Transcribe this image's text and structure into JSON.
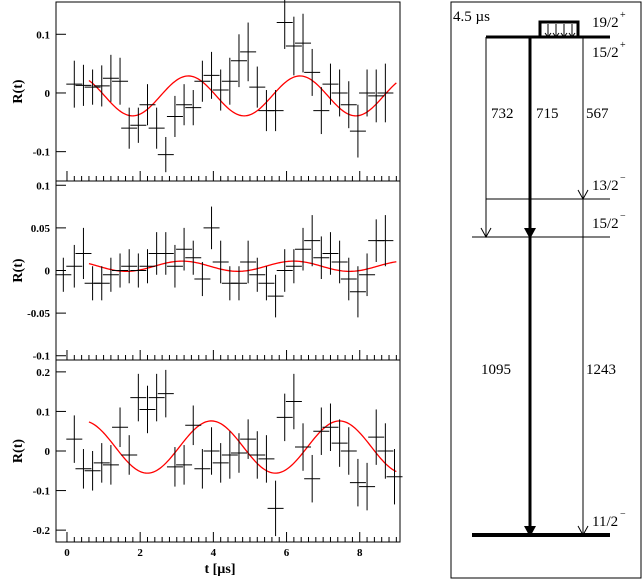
{
  "chart_data": [
    {
      "type": "scatter",
      "panel": "top",
      "ylabel": "R(t)",
      "xlim": [
        -0.3,
        9.1
      ],
      "ylim": [
        -0.15,
        0.155
      ],
      "yticks": [
        -0.1,
        0,
        0.1
      ],
      "ytick_labels": [
        "-0.1",
        "0",
        "0.1"
      ],
      "fit": {
        "offset": -0.005,
        "amplitude": 0.034,
        "period": 3.05,
        "phase": -0.55,
        "x_range": [
          0.6,
          9.0
        ],
        "color": "#ff0000"
      },
      "points": [
        {
          "x": 0.2,
          "y": 0.015,
          "err": 0.04
        },
        {
          "x": 0.45,
          "y": 0.013,
          "err": 0.035
        },
        {
          "x": 0.7,
          "y": 0.01,
          "err": 0.03
        },
        {
          "x": 0.95,
          "y": 0.012,
          "err": 0.035
        },
        {
          "x": 1.2,
          "y": 0.025,
          "err": 0.04
        },
        {
          "x": 1.45,
          "y": 0.02,
          "err": 0.04
        },
        {
          "x": 1.7,
          "y": -0.06,
          "err": 0.035
        },
        {
          "x": 1.95,
          "y": -0.055,
          "err": 0.03
        },
        {
          "x": 2.2,
          "y": -0.02,
          "err": 0.035
        },
        {
          "x": 2.45,
          "y": -0.06,
          "err": 0.035
        },
        {
          "x": 2.7,
          "y": -0.105,
          "err": 0.03
        },
        {
          "x": 2.95,
          "y": -0.04,
          "err": 0.035
        },
        {
          "x": 3.2,
          "y": -0.02,
          "err": 0.035
        },
        {
          "x": 3.45,
          "y": -0.025,
          "err": 0.03
        },
        {
          "x": 3.7,
          "y": 0.02,
          "err": 0.035
        },
        {
          "x": 3.95,
          "y": 0.03,
          "err": 0.04
        },
        {
          "x": 4.2,
          "y": 0.005,
          "err": 0.035
        },
        {
          "x": 4.45,
          "y": 0.02,
          "err": 0.04
        },
        {
          "x": 4.7,
          "y": 0.055,
          "err": 0.045
        },
        {
          "x": 4.95,
          "y": 0.07,
          "err": 0.05
        },
        {
          "x": 5.2,
          "y": 0.01,
          "err": 0.035
        },
        {
          "x": 5.45,
          "y": -0.03,
          "err": 0.035
        },
        {
          "x": 5.7,
          "y": -0.03,
          "err": 0.035
        },
        {
          "x": 5.95,
          "y": 0.12,
          "err": 0.045
        },
        {
          "x": 6.2,
          "y": 0.08,
          "err": 0.05
        },
        {
          "x": 6.45,
          "y": 0.085,
          "err": 0.05
        },
        {
          "x": 6.7,
          "y": 0.035,
          "err": 0.04
        },
        {
          "x": 6.95,
          "y": -0.03,
          "err": 0.04
        },
        {
          "x": 7.2,
          "y": 0.015,
          "err": 0.035
        },
        {
          "x": 7.45,
          "y": 0.0,
          "err": 0.04
        },
        {
          "x": 7.7,
          "y": -0.02,
          "err": 0.04
        },
        {
          "x": 7.95,
          "y": -0.065,
          "err": 0.045
        },
        {
          "x": 8.2,
          "y": 0.0,
          "err": 0.04
        },
        {
          "x": 8.45,
          "y": -0.005,
          "err": 0.045
        },
        {
          "x": 8.7,
          "y": 0.0,
          "err": 0.05
        }
      ]
    },
    {
      "type": "scatter",
      "panel": "middle",
      "ylabel": "R(t)",
      "xlim": [
        -0.3,
        9.1
      ],
      "ylim": [
        -0.105,
        0.105
      ],
      "yticks": [
        -0.1,
        -0.05,
        0,
        0.05,
        0.1
      ],
      "ytick_labels": [
        "-0.1",
        "-0.05",
        "0",
        "0.05",
        "0.1"
      ],
      "fit": {
        "offset": 0.005,
        "amplitude": 0.006,
        "period": 3.05,
        "phase": -0.2,
        "x_range": [
          0.6,
          9.0
        ],
        "color": "#ff0000"
      },
      "points": [
        {
          "x": -0.1,
          "y": -0.005,
          "err": 0.02
        },
        {
          "x": 0.2,
          "y": 0.005,
          "err": 0.025
        },
        {
          "x": 0.45,
          "y": 0.02,
          "err": 0.03
        },
        {
          "x": 0.7,
          "y": -0.015,
          "err": 0.02
        },
        {
          "x": 0.95,
          "y": -0.015,
          "err": 0.02
        },
        {
          "x": 1.2,
          "y": -0.005,
          "err": 0.02
        },
        {
          "x": 1.45,
          "y": 0.0,
          "err": 0.02
        },
        {
          "x": 1.7,
          "y": 0.005,
          "err": 0.02
        },
        {
          "x": 1.95,
          "y": 0.0,
          "err": 0.02
        },
        {
          "x": 2.2,
          "y": 0.005,
          "err": 0.02
        },
        {
          "x": 2.45,
          "y": 0.02,
          "err": 0.025
        },
        {
          "x": 2.7,
          "y": 0.02,
          "err": 0.025
        },
        {
          "x": 2.95,
          "y": 0.005,
          "err": 0.025
        },
        {
          "x": 3.2,
          "y": 0.025,
          "err": 0.025
        },
        {
          "x": 3.45,
          "y": 0.015,
          "err": 0.02
        },
        {
          "x": 3.7,
          "y": -0.01,
          "err": 0.02
        },
        {
          "x": 3.95,
          "y": 0.05,
          "err": 0.025
        },
        {
          "x": 4.2,
          "y": 0.01,
          "err": 0.025
        },
        {
          "x": 4.45,
          "y": -0.015,
          "err": 0.02
        },
        {
          "x": 4.7,
          "y": -0.015,
          "err": 0.02
        },
        {
          "x": 4.95,
          "y": 0.01,
          "err": 0.025
        },
        {
          "x": 5.2,
          "y": -0.005,
          "err": 0.02
        },
        {
          "x": 5.45,
          "y": -0.015,
          "err": 0.02
        },
        {
          "x": 5.7,
          "y": -0.03,
          "err": 0.025
        },
        {
          "x": 5.95,
          "y": 0.0,
          "err": 0.025
        },
        {
          "x": 6.2,
          "y": 0.005,
          "err": 0.02
        },
        {
          "x": 6.45,
          "y": 0.025,
          "err": 0.025
        },
        {
          "x": 6.7,
          "y": 0.035,
          "err": 0.03
        },
        {
          "x": 6.95,
          "y": 0.015,
          "err": 0.025
        },
        {
          "x": 7.2,
          "y": 0.02,
          "err": 0.025
        },
        {
          "x": 7.45,
          "y": 0.01,
          "err": 0.025
        },
        {
          "x": 7.7,
          "y": -0.01,
          "err": 0.025
        },
        {
          "x": 7.95,
          "y": -0.025,
          "err": 0.03
        },
        {
          "x": 8.2,
          "y": -0.005,
          "err": 0.025
        },
        {
          "x": 8.45,
          "y": 0.035,
          "err": 0.025
        },
        {
          "x": 8.7,
          "y": 0.035,
          "err": 0.03
        }
      ]
    },
    {
      "type": "scatter",
      "panel": "bottom",
      "ylabel": "R(t)",
      "xlabel": "t [µs]",
      "xlim": [
        -0.3,
        9.1
      ],
      "ylim": [
        -0.23,
        0.23
      ],
      "yticks": [
        -0.2,
        -0.1,
        0,
        0.1,
        0.2
      ],
      "ytick_labels": [
        "-0.2",
        "-0.1",
        "0",
        "0.1",
        "0.2"
      ],
      "xticks": [
        0,
        2,
        4,
        6,
        8
      ],
      "xtick_labels": [
        "0",
        "2",
        "4",
        "6",
        "8"
      ],
      "fit": {
        "offset": 0.01,
        "amplitude": 0.066,
        "period": 3.5,
        "phase": -0.8,
        "x_range": [
          0.6,
          9.0
        ],
        "color": "#ff0000"
      },
      "points": [
        {
          "x": 0.2,
          "y": 0.03,
          "err": 0.06
        },
        {
          "x": 0.45,
          "y": -0.045,
          "err": 0.05
        },
        {
          "x": 0.7,
          "y": -0.05,
          "err": 0.05
        },
        {
          "x": 0.95,
          "y": -0.03,
          "err": 0.05
        },
        {
          "x": 1.2,
          "y": -0.035,
          "err": 0.05
        },
        {
          "x": 1.45,
          "y": 0.06,
          "err": 0.05
        },
        {
          "x": 1.7,
          "y": -0.01,
          "err": 0.05
        },
        {
          "x": 1.95,
          "y": 0.135,
          "err": 0.06
        },
        {
          "x": 2.2,
          "y": 0.105,
          "err": 0.06
        },
        {
          "x": 2.45,
          "y": 0.135,
          "err": 0.06
        },
        {
          "x": 2.7,
          "y": 0.145,
          "err": 0.06
        },
        {
          "x": 2.95,
          "y": -0.04,
          "err": 0.05
        },
        {
          "x": 3.2,
          "y": -0.035,
          "err": 0.05
        },
        {
          "x": 3.45,
          "y": 0.065,
          "err": 0.05
        },
        {
          "x": 3.7,
          "y": -0.045,
          "err": 0.05
        },
        {
          "x": 3.95,
          "y": 0.0,
          "err": 0.06
        },
        {
          "x": 4.2,
          "y": -0.03,
          "err": 0.05
        },
        {
          "x": 4.45,
          "y": -0.01,
          "err": 0.06
        },
        {
          "x": 4.7,
          "y": -0.005,
          "err": 0.05
        },
        {
          "x": 4.95,
          "y": 0.03,
          "err": 0.05
        },
        {
          "x": 5.2,
          "y": -0.01,
          "err": 0.06
        },
        {
          "x": 5.45,
          "y": -0.02,
          "err": 0.06
        },
        {
          "x": 5.7,
          "y": -0.145,
          "err": 0.07
        },
        {
          "x": 5.95,
          "y": 0.085,
          "err": 0.06
        },
        {
          "x": 6.2,
          "y": 0.125,
          "err": 0.07
        },
        {
          "x": 6.45,
          "y": 0.01,
          "err": 0.06
        },
        {
          "x": 6.7,
          "y": -0.07,
          "err": 0.06
        },
        {
          "x": 6.95,
          "y": 0.05,
          "err": 0.06
        },
        {
          "x": 7.2,
          "y": 0.06,
          "err": 0.06
        },
        {
          "x": 7.45,
          "y": 0.02,
          "err": 0.06
        },
        {
          "x": 7.7,
          "y": 0.0,
          "err": 0.06
        },
        {
          "x": 7.95,
          "y": -0.08,
          "err": 0.06
        },
        {
          "x": 8.2,
          "y": -0.09,
          "err": 0.06
        },
        {
          "x": 8.45,
          "y": 0.035,
          "err": 0.07
        },
        {
          "x": 8.7,
          "y": 0.0,
          "err": 0.07
        },
        {
          "x": 8.95,
          "y": -0.065,
          "err": 0.07
        }
      ]
    },
    {
      "type": "diagram",
      "panel": "level-scheme",
      "isomer_label": "4.5 µs",
      "levels": [
        {
          "spin": "19/2",
          "parity": "+"
        },
        {
          "spin": "15/2",
          "parity": "+"
        },
        {
          "spin": "13/2",
          "parity": "−"
        },
        {
          "spin": "15/2",
          "parity": "−"
        },
        {
          "spin": "11/2",
          "parity": "−"
        }
      ],
      "transitions": [
        {
          "energy": "732"
        },
        {
          "energy": "715"
        },
        {
          "energy": "567"
        },
        {
          "energy": "1095"
        },
        {
          "energy": "1243"
        }
      ]
    }
  ]
}
